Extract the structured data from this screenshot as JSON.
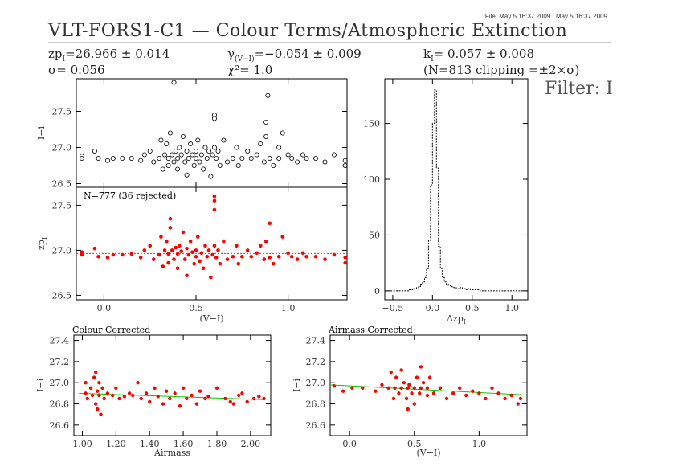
{
  "header": {
    "file_info": "File: May  5 16:37 2009 : May  5 16:37 2009",
    "title": "VLT-FORS1-C1  —  Colour Terms/Atmospheric Extinction",
    "zp_label": "zp",
    "zp_sub": "I",
    "zp_value": "=26.966 ± 0.014",
    "sigma": "σ=  0.056",
    "gamma_label": "γ",
    "gamma_sub": "(V−I)",
    "gamma_value": "=−0.054 ± 0.009",
    "chi2": "χ²=   1.0",
    "k_label": "k",
    "k_sub": "I",
    "k_value": "=  0.057  ±  0.008",
    "clip_info": "(N=813 clipping =±2×σ)",
    "filter_label": "Filter: I"
  },
  "colors": {
    "raw": "#000000",
    "corrected": "#ff0000",
    "fit_line": "#00cc00"
  },
  "chart_data": [
    {
      "id": "top-raw",
      "type": "scatter",
      "ylabel": "I−i",
      "xlim": [
        -0.15,
        1.32
      ],
      "ylim": [
        26.45,
        27.95
      ],
      "yticks": [
        26.5,
        27.0,
        27.5
      ],
      "ytick_labels": [
        "26.5",
        "27.0",
        "27.5"
      ],
      "x": [
        -0.12,
        -0.12,
        -0.05,
        -0.03,
        0.02,
        0.05,
        0.1,
        0.15,
        0.2,
        0.22,
        0.25,
        0.27,
        0.3,
        0.31,
        0.32,
        0.33,
        0.34,
        0.35,
        0.35,
        0.36,
        0.37,
        0.38,
        0.39,
        0.4,
        0.4,
        0.41,
        0.42,
        0.43,
        0.44,
        0.45,
        0.45,
        0.46,
        0.47,
        0.48,
        0.49,
        0.5,
        0.5,
        0.51,
        0.52,
        0.53,
        0.54,
        0.55,
        0.56,
        0.57,
        0.58,
        0.59,
        0.6,
        0.6,
        0.61,
        0.62,
        0.63,
        0.65,
        0.67,
        0.7,
        0.72,
        0.73,
        0.75,
        0.78,
        0.8,
        0.83,
        0.85,
        0.87,
        0.88,
        0.9,
        0.92,
        0.95,
        0.97,
        1.0,
        1.02,
        1.05,
        1.08,
        1.1,
        1.15,
        1.2,
        1.25,
        1.31,
        1.31,
        0.38,
        0.89,
        0.6,
        0.88,
        0.95
      ],
      "y": [
        26.88,
        26.85,
        26.95,
        26.85,
        26.82,
        26.85,
        26.85,
        26.85,
        26.82,
        26.9,
        26.95,
        26.8,
        26.85,
        27.1,
        26.7,
        26.9,
        27.05,
        26.85,
        26.75,
        27.2,
        26.9,
        26.8,
        26.95,
        26.85,
        26.7,
        27.0,
        26.9,
        27.15,
        26.8,
        26.95,
        26.62,
        26.85,
        27.05,
        26.9,
        26.75,
        26.95,
        26.85,
        27.1,
        26.8,
        26.9,
        26.7,
        27.0,
        26.85,
        26.95,
        26.6,
        26.9,
        27.4,
        27.0,
        26.85,
        26.95,
        26.75,
        27.1,
        26.8,
        26.85,
        27.0,
        26.75,
        26.85,
        26.95,
        26.85,
        26.9,
        27.05,
        26.8,
        27.15,
        26.85,
        26.75,
        26.85,
        27.2,
        26.9,
        26.85,
        26.8,
        26.9,
        26.85,
        26.85,
        26.8,
        26.9,
        26.75,
        26.82,
        27.9,
        27.72,
        27.45,
        27.35,
        27.0
      ],
      "xticks": [
        0.0,
        0.5,
        1.0
      ]
    },
    {
      "id": "mid-zp",
      "type": "scatter",
      "ylabel": "zp_I",
      "annotation": "N=777 (36 rejected)",
      "xlabel": "(V−I)",
      "xlim": [
        -0.15,
        1.32
      ],
      "ylim": [
        26.45,
        27.7
      ],
      "yticks": [
        26.5,
        27.0,
        27.5
      ],
      "ytick_labels": [
        "26.5",
        "27.0",
        "27.5"
      ],
      "xticks": [
        0.0,
        0.5,
        1.0
      ],
      "xtick_labels": [
        "0.0",
        "0.5",
        "1.0"
      ],
      "fit_y": 26.965,
      "x": [
        -0.12,
        -0.12,
        -0.05,
        -0.03,
        0.02,
        0.05,
        0.1,
        0.15,
        0.2,
        0.22,
        0.25,
        0.27,
        0.3,
        0.31,
        0.32,
        0.33,
        0.34,
        0.35,
        0.35,
        0.36,
        0.37,
        0.38,
        0.39,
        0.4,
        0.4,
        0.41,
        0.42,
        0.43,
        0.44,
        0.45,
        0.45,
        0.46,
        0.47,
        0.48,
        0.49,
        0.5,
        0.5,
        0.51,
        0.52,
        0.53,
        0.54,
        0.55,
        0.56,
        0.57,
        0.58,
        0.59,
        0.6,
        0.6,
        0.61,
        0.62,
        0.63,
        0.65,
        0.67,
        0.7,
        0.72,
        0.73,
        0.75,
        0.78,
        0.8,
        0.83,
        0.85,
        0.87,
        0.88,
        0.9,
        0.92,
        0.95,
        0.97,
        1.0,
        1.02,
        1.05,
        1.08,
        1.1,
        1.15,
        1.2,
        1.25,
        1.31,
        1.31,
        0.36,
        0.6,
        0.6,
        0.9
      ],
      "y": [
        26.98,
        26.95,
        27.02,
        26.93,
        26.92,
        26.95,
        26.95,
        26.96,
        26.92,
        27.0,
        27.05,
        26.9,
        26.95,
        27.15,
        26.82,
        27.0,
        27.1,
        26.96,
        26.86,
        27.25,
        27.0,
        26.9,
        27.03,
        26.96,
        26.8,
        27.05,
        26.99,
        27.2,
        26.9,
        27.02,
        26.72,
        26.95,
        27.1,
        26.98,
        26.85,
        27.0,
        26.93,
        27.15,
        26.88,
        26.97,
        26.8,
        27.05,
        26.93,
        27.0,
        26.7,
        26.95,
        27.45,
        27.05,
        26.92,
        27.0,
        26.85,
        27.1,
        26.9,
        26.93,
        27.05,
        26.85,
        26.93,
        27.0,
        26.93,
        26.97,
        27.05,
        26.9,
        27.1,
        26.92,
        26.85,
        26.93,
        27.15,
        26.97,
        26.93,
        26.9,
        26.97,
        26.93,
        26.93,
        26.9,
        26.95,
        26.86,
        26.92,
        27.35,
        27.6,
        27.55,
        27.3
      ]
    },
    {
      "id": "histogram",
      "type": "bar",
      "xlabel": "Δzp_I",
      "xlim": [
        -0.6,
        1.2
      ],
      "ylim": [
        -8,
        190
      ],
      "yticks": [
        0,
        50,
        100,
        150
      ],
      "ytick_labels": [
        "0",
        "50",
        "100",
        "150"
      ],
      "xticks": [
        -0.5,
        0.0,
        0.5,
        1.0
      ],
      "xtick_labels": [
        "−0.5",
        "0.0",
        "0.5",
        "1.0"
      ],
      "bin_start": -0.6,
      "bin_width": 0.025,
      "counts": [
        0,
        0,
        0,
        0,
        0,
        0,
        0,
        0,
        0,
        0,
        0,
        0,
        1,
        1,
        2,
        2,
        3,
        4,
        6,
        8,
        12,
        20,
        45,
        95,
        150,
        180,
        110,
        40,
        20,
        12,
        8,
        6,
        5,
        4,
        3,
        3,
        2,
        2,
        3,
        2,
        2,
        1,
        2,
        1,
        1,
        1,
        1,
        1,
        0,
        0,
        0,
        0,
        0,
        0,
        0,
        0,
        0,
        0,
        0,
        0,
        0,
        0,
        0,
        0,
        0,
        0,
        0,
        0,
        0,
        0,
        0,
        0
      ]
    },
    {
      "id": "colour-corrected",
      "type": "scatter",
      "title": "Colour Corrected",
      "xlabel": "Airmass",
      "ylabel": "I−i",
      "xlim": [
        0.95,
        2.12
      ],
      "ylim": [
        26.5,
        27.45
      ],
      "yticks": [
        26.6,
        26.8,
        27.0,
        27.2,
        27.4
      ],
      "ytick_labels": [
        "26.6",
        "26.8",
        "27.0",
        "27.2",
        "27.4"
      ],
      "xticks": [
        1.0,
        1.2,
        1.4,
        1.6,
        1.8,
        2.0
      ],
      "xtick_labels": [
        "1.00",
        "1.20",
        "1.40",
        "1.60",
        "1.80",
        "2.00"
      ],
      "fit": [
        [
          0.98,
          26.9
        ],
        [
          2.08,
          26.84
        ]
      ],
      "x": [
        1.02,
        1.02,
        1.03,
        1.05,
        1.06,
        1.07,
        1.08,
        1.08,
        1.09,
        1.09,
        1.1,
        1.1,
        1.11,
        1.12,
        1.13,
        1.15,
        1.18,
        1.2,
        1.22,
        1.25,
        1.28,
        1.3,
        1.33,
        1.35,
        1.38,
        1.4,
        1.43,
        1.45,
        1.48,
        1.5,
        1.52,
        1.55,
        1.58,
        1.6,
        1.62,
        1.65,
        1.68,
        1.7,
        1.73,
        1.75,
        1.8,
        1.85,
        1.88,
        1.9,
        1.93,
        1.95,
        1.98,
        2.02,
        2.05,
        2.08
      ],
      "y": [
        26.9,
        27.0,
        26.85,
        26.95,
        26.88,
        27.05,
        26.8,
        27.1,
        26.92,
        26.75,
        27.0,
        26.88,
        26.7,
        26.95,
        26.85,
        26.9,
        26.88,
        26.95,
        26.85,
        26.87,
        26.9,
        26.88,
        27.0,
        26.85,
        26.9,
        26.82,
        26.95,
        26.87,
        26.8,
        26.92,
        26.85,
        26.9,
        26.78,
        26.95,
        26.85,
        26.88,
        26.8,
        26.92,
        26.85,
        26.87,
        26.95,
        26.85,
        26.82,
        26.8,
        26.88,
        26.9,
        26.82,
        26.85,
        26.87,
        26.85
      ]
    },
    {
      "id": "airmass-corrected",
      "type": "scatter",
      "title": "Airmass Corrected",
      "xlabel": "(V−I)",
      "ylabel": "I−i",
      "xlim": [
        -0.15,
        1.37
      ],
      "ylim": [
        26.5,
        27.45
      ],
      "yticks": [
        26.6,
        26.8,
        27.0,
        27.2,
        27.4
      ],
      "ytick_labels": [
        "26.6",
        "26.8",
        "27.0",
        "27.2",
        "27.4"
      ],
      "xticks": [
        0.0,
        0.5,
        1.0
      ],
      "xtick_labels": [
        "0.0",
        "0.5",
        "1.0"
      ],
      "fit": [
        [
          -0.15,
          26.98
        ],
        [
          1.35,
          26.885
        ]
      ],
      "x": [
        -0.12,
        -0.05,
        0.02,
        0.1,
        0.2,
        0.25,
        0.3,
        0.32,
        0.34,
        0.35,
        0.36,
        0.38,
        0.4,
        0.42,
        0.44,
        0.45,
        0.46,
        0.48,
        0.5,
        0.5,
        0.52,
        0.54,
        0.55,
        0.57,
        0.6,
        0.6,
        0.62,
        0.65,
        0.7,
        0.75,
        0.8,
        0.85,
        0.9,
        0.95,
        1.0,
        1.05,
        1.1,
        1.15,
        1.2,
        1.25,
        1.3,
        1.32,
        0.4,
        0.45,
        0.55
      ],
      "y": [
        26.97,
        26.92,
        26.95,
        26.95,
        26.92,
        26.98,
        26.95,
        27.1,
        26.85,
        26.95,
        27.05,
        26.9,
        26.95,
        27.0,
        26.85,
        26.95,
        26.98,
        26.9,
        26.95,
        26.8,
        27.05,
        26.9,
        26.95,
        27.0,
        26.88,
        26.95,
        27.05,
        26.9,
        26.95,
        26.85,
        26.9,
        26.95,
        26.88,
        26.92,
        26.9,
        26.85,
        26.95,
        26.9,
        26.85,
        26.88,
        26.8,
        26.85,
        27.12,
        26.75,
        27.15
      ]
    }
  ]
}
